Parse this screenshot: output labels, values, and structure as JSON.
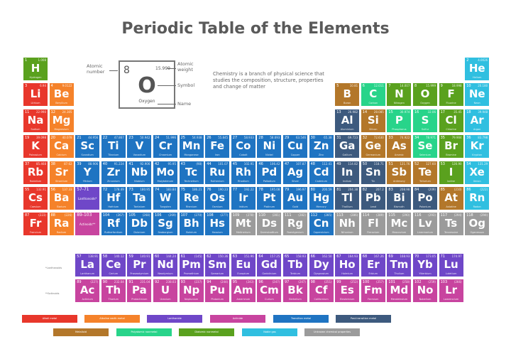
{
  "title": "Periodic Table of the Elements",
  "key": {
    "atomic_number_label": "Atomic number",
    "atomic_weight_label": "Atomic weight",
    "symbol_label": "Symbol",
    "name_label": "Name",
    "number": "8",
    "weight": "15.999",
    "symbol": "O",
    "name": "Oxygen"
  },
  "description": "Chemistry is a branch of physical science that studies the composition, structure, properties and change of matter",
  "series_labels": {
    "lanthanoids": "*Lanthanoids",
    "actinoids": "**Actinoids"
  },
  "placeholders": [
    {
      "range": "57-71",
      "label": "Lanthanoids*",
      "cat": "l"
    },
    {
      "range": "89-103",
      "label": "Actinoids**",
      "cat": "c"
    }
  ],
  "colors": {
    "a": "#e8372b",
    "e": "#f5822a",
    "l": "#6f47c8",
    "c": "#c8449f",
    "t": "#1f74c2",
    "p": "#3d5a7e",
    "m": "#b3772a",
    "n": "#28d48a",
    "d": "#5aa11e",
    "g": "#30bfe0",
    "u": "#9b9b9b"
  },
  "legend": [
    {
      "cat": "a",
      "label": "Alkali metal"
    },
    {
      "cat": "e",
      "label": "Alkaline earth metal"
    },
    {
      "cat": "l",
      "label": "Lanthanide"
    },
    {
      "cat": "c",
      "label": "Actinide"
    },
    {
      "cat": "t",
      "label": "Transition metal"
    },
    {
      "cat": "p",
      "label": "Post-transition metal"
    },
    {
      "cat": "m",
      "label": "Metalloid"
    },
    {
      "cat": "n",
      "label": "Polyatomic nonmetal"
    },
    {
      "cat": "d",
      "label": "Diatomic nonmetal"
    },
    {
      "cat": "g",
      "label": "Noble gas"
    },
    {
      "cat": "u",
      "label": "Unknown chemical properties"
    }
  ],
  "elements": [
    [
      1,
      "H",
      "Hydrogen",
      "1.008",
      "d"
    ],
    [
      2,
      "He",
      "Helium",
      "4.0026",
      "g"
    ],
    [
      3,
      "Li",
      "Lithium",
      "6.94",
      "a"
    ],
    [
      4,
      "Be",
      "Beryllium",
      "9.0122",
      "e"
    ],
    [
      5,
      "B",
      "Boron",
      "10.81",
      "m"
    ],
    [
      6,
      "C",
      "Carbon",
      "12.011",
      "n"
    ],
    [
      7,
      "N",
      "Nitrogen",
      "14.007",
      "d"
    ],
    [
      8,
      "O",
      "Oxygen",
      "15.999",
      "d"
    ],
    [
      9,
      "F",
      "Fluorine",
      "18.998",
      "d"
    ],
    [
      10,
      "Ne",
      "Neon",
      "20.180",
      "g"
    ],
    [
      11,
      "Na",
      "Sodium",
      "22.990",
      "a"
    ],
    [
      12,
      "Mg",
      "Magnesium",
      "24.305",
      "e"
    ],
    [
      13,
      "Al",
      "Aluminium",
      "26.982",
      "p"
    ],
    [
      14,
      "Si",
      "Silicon",
      "28.085",
      "m"
    ],
    [
      15,
      "P",
      "Phosphorus",
      "30.974",
      "n"
    ],
    [
      16,
      "S",
      "Sulfur",
      "32.06",
      "n"
    ],
    [
      17,
      "Cl",
      "Chlorine",
      "35.45",
      "d"
    ],
    [
      18,
      "Ar",
      "Argon",
      "39.948",
      "g"
    ],
    [
      19,
      "K",
      "Potassium",
      "39.098",
      "a"
    ],
    [
      20,
      "Ca",
      "Calcium",
      "40.078",
      "e"
    ],
    [
      21,
      "Sc",
      "Scandium",
      "44.956",
      "t"
    ],
    [
      22,
      "Ti",
      "Titanium",
      "47.867",
      "t"
    ],
    [
      23,
      "V",
      "Vanadium",
      "50.942",
      "t"
    ],
    [
      24,
      "Cr",
      "Chromium",
      "51.996",
      "t"
    ],
    [
      25,
      "Mn",
      "Manganese",
      "54.938",
      "t"
    ],
    [
      26,
      "Fe",
      "Iron",
      "55.845",
      "t"
    ],
    [
      27,
      "Co",
      "Cobalt",
      "58.933",
      "t"
    ],
    [
      28,
      "Ni",
      "Nickel",
      "58.693",
      "t"
    ],
    [
      29,
      "Cu",
      "Copper",
      "63.546",
      "t"
    ],
    [
      30,
      "Zn",
      "Zinc",
      "65.38",
      "t"
    ],
    [
      31,
      "Ga",
      "Gallium",
      "69.723",
      "p"
    ],
    [
      32,
      "Ge",
      "Germanium",
      "72.630",
      "m"
    ],
    [
      33,
      "As",
      "Arsenic",
      "74.922",
      "m"
    ],
    [
      34,
      "Se",
      "Selenium",
      "78.971",
      "n"
    ],
    [
      35,
      "Br",
      "Bromine",
      "79.904",
      "d"
    ],
    [
      36,
      "Kr",
      "Krypton",
      "83.798",
      "g"
    ],
    [
      37,
      "Rb",
      "Rubidium",
      "85.468",
      "a"
    ],
    [
      38,
      "Sr",
      "Strontium",
      "87.62",
      "e"
    ],
    [
      39,
      "Y",
      "Yttrium",
      "88.906",
      "t"
    ],
    [
      40,
      "Zr",
      "Zirconium",
      "91.224",
      "t"
    ],
    [
      41,
      "Nb",
      "Niobium",
      "92.906",
      "t"
    ],
    [
      42,
      "Mo",
      "Molybdenum",
      "95.95",
      "t"
    ],
    [
      43,
      "Tc",
      "Technetium",
      "(98)",
      "t"
    ],
    [
      44,
      "Ru",
      "Ruthenium",
      "101.07",
      "t"
    ],
    [
      45,
      "Rh",
      "Rhodium",
      "102.91",
      "t"
    ],
    [
      46,
      "Pd",
      "Palladium",
      "106.42",
      "t"
    ],
    [
      47,
      "Ag",
      "Silver",
      "107.87",
      "t"
    ],
    [
      48,
      "Cd",
      "Cadmium",
      "112.41",
      "t"
    ],
    [
      49,
      "In",
      "Indium",
      "114.82",
      "p"
    ],
    [
      50,
      "Sn",
      "Tin",
      "118.71",
      "p"
    ],
    [
      51,
      "Sb",
      "Antimony",
      "121.76",
      "m"
    ],
    [
      52,
      "Te",
      "Tellurium",
      "127.60",
      "m"
    ],
    [
      53,
      "I",
      "Iodine",
      "126.90",
      "d"
    ],
    [
      54,
      "Xe",
      "Xenon",
      "131.29",
      "g"
    ],
    [
      55,
      "Cs",
      "Caesium",
      "132.91",
      "a"
    ],
    [
      56,
      "Ba",
      "Barium",
      "137.33",
      "e"
    ],
    [
      72,
      "Hf",
      "Hafnium",
      "178.49",
      "t"
    ],
    [
      73,
      "Ta",
      "Tantalum",
      "180.95",
      "t"
    ],
    [
      74,
      "W",
      "Tungsten",
      "183.84",
      "t"
    ],
    [
      75,
      "Re",
      "Rhenium",
      "186.21",
      "t"
    ],
    [
      76,
      "Os",
      "Osmium",
      "190.23",
      "t"
    ],
    [
      77,
      "Ir",
      "Iridium",
      "192.22",
      "t"
    ],
    [
      78,
      "Pt",
      "Platinum",
      "195.08",
      "t"
    ],
    [
      79,
      "Au",
      "Gold",
      "196.97",
      "t"
    ],
    [
      80,
      "Hg",
      "Mercury",
      "200.59",
      "t"
    ],
    [
      81,
      "Tl",
      "Thallium",
      "204.38",
      "p"
    ],
    [
      82,
      "Pb",
      "Lead",
      "207.2",
      "p"
    ],
    [
      83,
      "Bi",
      "Bismuth",
      "208.98",
      "p"
    ],
    [
      84,
      "Po",
      "Polonium",
      "(209)",
      "p"
    ],
    [
      85,
      "At",
      "Astatine",
      "(210)",
      "m"
    ],
    [
      86,
      "Rn",
      "Radon",
      "(222)",
      "g"
    ],
    [
      87,
      "Fr",
      "Francium",
      "(223)",
      "a"
    ],
    [
      88,
      "Ra",
      "Radium",
      "(226)",
      "e"
    ],
    [
      104,
      "Rf",
      "Rutherfordium",
      "(267)",
      "t"
    ],
    [
      105,
      "Db",
      "Dubnium",
      "(268)",
      "t"
    ],
    [
      106,
      "Sg",
      "Seaborgium",
      "(269)",
      "t"
    ],
    [
      107,
      "Bh",
      "Bohrium",
      "(270)",
      "t"
    ],
    [
      108,
      "Hs",
      "Hassium",
      "(277)",
      "t"
    ],
    [
      109,
      "Mt",
      "Meitnerium",
      "(278)",
      "u"
    ],
    [
      110,
      "Ds",
      "Darmstadtium",
      "(281)",
      "u"
    ],
    [
      111,
      "Rg",
      "Roentgenium",
      "(282)",
      "u"
    ],
    [
      112,
      "Cn",
      "Copernicium",
      "(285)",
      "t"
    ],
    [
      113,
      "Nh",
      "Nihonium",
      "(286)",
      "u"
    ],
    [
      114,
      "Fl",
      "Flerovium",
      "(289)",
      "u"
    ],
    [
      115,
      "Mc",
      "Moscovium",
      "(290)",
      "u"
    ],
    [
      116,
      "Lv",
      "Livermorium",
      "(293)",
      "u"
    ],
    [
      117,
      "Ts",
      "Tennessine",
      "(294)",
      "u"
    ],
    [
      118,
      "Og",
      "Oganesson",
      "(294)",
      "u"
    ],
    [
      57,
      "La",
      "Lanthanum",
      "138.91",
      "l"
    ],
    [
      58,
      "Ce",
      "Cerium",
      "140.12",
      "l"
    ],
    [
      59,
      "Pr",
      "Praseodymium",
      "140.91",
      "l"
    ],
    [
      60,
      "Nd",
      "Neodymium",
      "144.24",
      "l"
    ],
    [
      61,
      "Pm",
      "Promethium",
      "(145)",
      "l"
    ],
    [
      62,
      "Sm",
      "Samarium",
      "150.36",
      "l"
    ],
    [
      63,
      "Eu",
      "Europium",
      "151.96",
      "l"
    ],
    [
      64,
      "Gd",
      "Gadolinium",
      "157.25",
      "l"
    ],
    [
      65,
      "Tb",
      "Terbium",
      "158.93",
      "l"
    ],
    [
      66,
      "Dy",
      "Dysprosium",
      "162.50",
      "l"
    ],
    [
      67,
      "Ho",
      "Holmium",
      "164.93",
      "l"
    ],
    [
      68,
      "Er",
      "Erbium",
      "167.26",
      "l"
    ],
    [
      69,
      "Tm",
      "Thulium",
      "168.93",
      "l"
    ],
    [
      70,
      "Yb",
      "Ytterbium",
      "173.05",
      "l"
    ],
    [
      71,
      "Lu",
      "Lutetium",
      "174.97",
      "l"
    ],
    [
      89,
      "Ac",
      "Actinium",
      "(227)",
      "c"
    ],
    [
      90,
      "Th",
      "Thorium",
      "232.04",
      "c"
    ],
    [
      91,
      "Pa",
      "Protactinium",
      "231.04",
      "c"
    ],
    [
      92,
      "U",
      "Uranium",
      "238.03",
      "c"
    ],
    [
      93,
      "Np",
      "Neptunium",
      "(237)",
      "c"
    ],
    [
      94,
      "Pu",
      "Plutonium",
      "(244)",
      "c"
    ],
    [
      95,
      "Am",
      "Americium",
      "(243)",
      "c"
    ],
    [
      96,
      "Cm",
      "Curium",
      "(247)",
      "c"
    ],
    [
      97,
      "Bk",
      "Berkelium",
      "(247)",
      "c"
    ],
    [
      98,
      "Cf",
      "Californium",
      "(251)",
      "c"
    ],
    [
      99,
      "Es",
      "Einsteinium",
      "(252)",
      "c"
    ],
    [
      100,
      "Fm",
      "Fermium",
      "(257)",
      "c"
    ],
    [
      101,
      "Md",
      "Mendelevium",
      "(258)",
      "c"
    ],
    [
      102,
      "No",
      "Nobelium",
      "(259)",
      "c"
    ],
    [
      103,
      "Lr",
      "Lawrencium",
      "(266)",
      "c"
    ]
  ]
}
